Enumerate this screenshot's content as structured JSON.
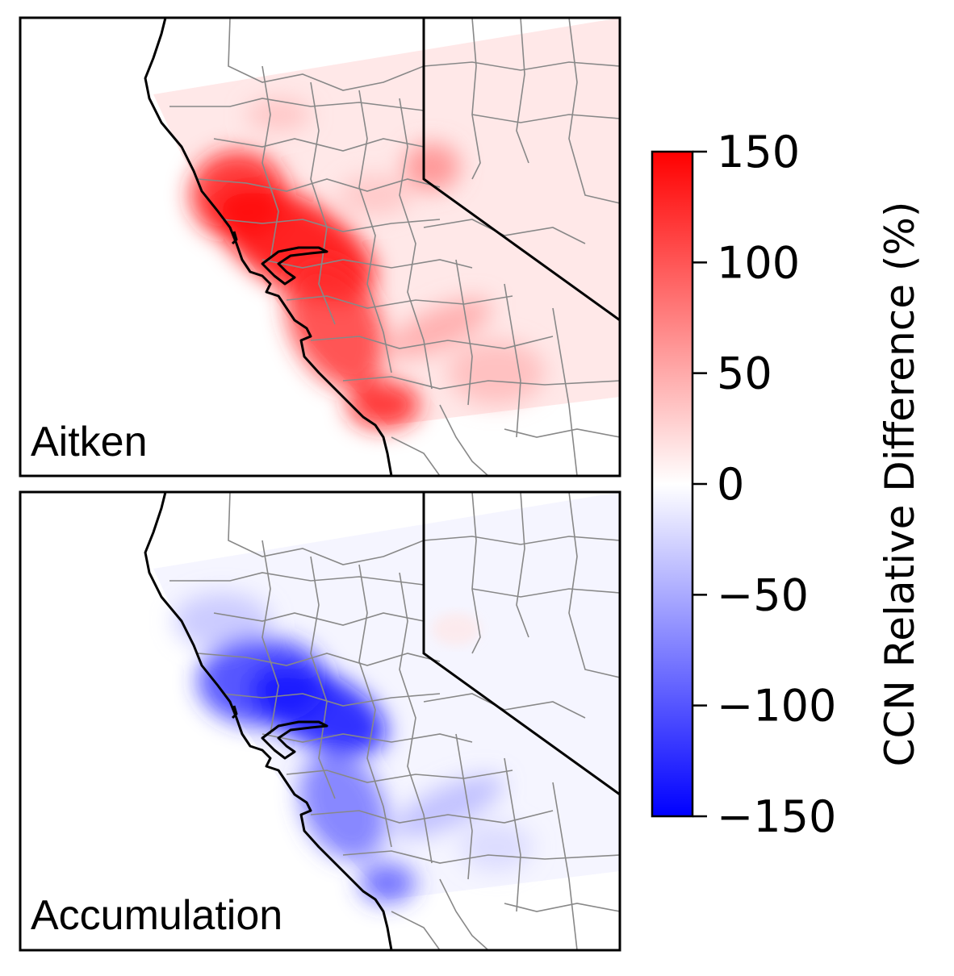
{
  "panels": [
    {
      "id": "aitken",
      "label": "Aitken",
      "mode": "positive"
    },
    {
      "id": "accumulation",
      "label": "Accumulation",
      "mode": "negative"
    }
  ],
  "colorbar": {
    "title": "CCN Relative Difference (%)",
    "colormap": "bwr",
    "vmin": -150,
    "vmax": 150,
    "ticks": [
      150,
      100,
      50,
      0,
      -50,
      -100,
      -150
    ],
    "tick_labels": [
      "150",
      "100",
      "50",
      "0",
      "−50",
      "−100",
      "−150"
    ],
    "colors": {
      "low": "#0000ff",
      "mid": "#ffffff",
      "high": "#ff0000"
    }
  }
}
